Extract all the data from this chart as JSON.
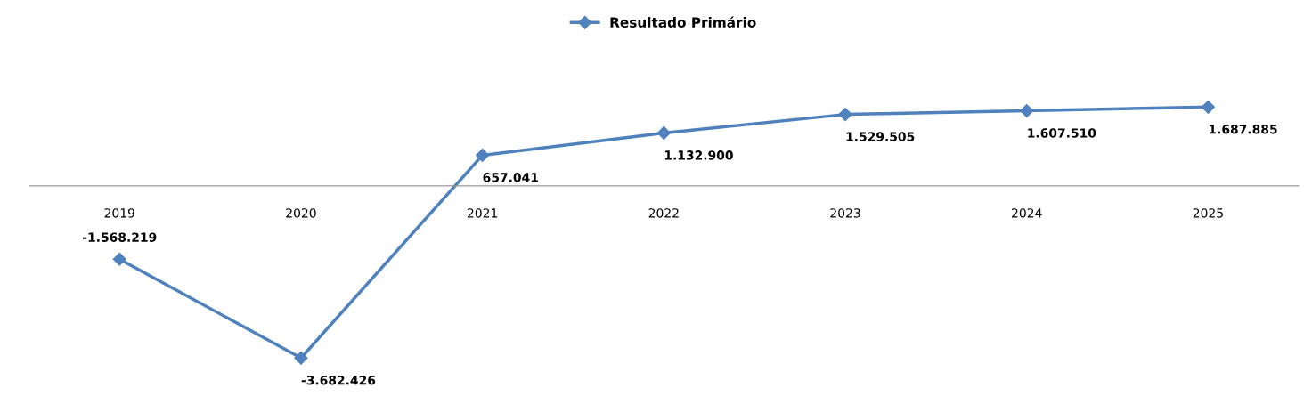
{
  "chart_data": {
    "type": "line",
    "categories": [
      "2019",
      "2020",
      "2021",
      "2022",
      "2023",
      "2024",
      "2025"
    ],
    "series": [
      {
        "name": "Resultado Primário",
        "color": "#4f81bd",
        "values": [
          -1568219,
          -3682426,
          657041,
          1132900,
          1529505,
          1607510,
          1687885
        ],
        "value_labels": [
          "-1.568.219",
          "-3.682.426",
          "657.041",
          "1.132.900",
          "1.529.505",
          "1.607.510",
          "1.687.885"
        ]
      }
    ],
    "legend": "top",
    "marker": "diamond",
    "line_style": "solid",
    "grid": false
  }
}
